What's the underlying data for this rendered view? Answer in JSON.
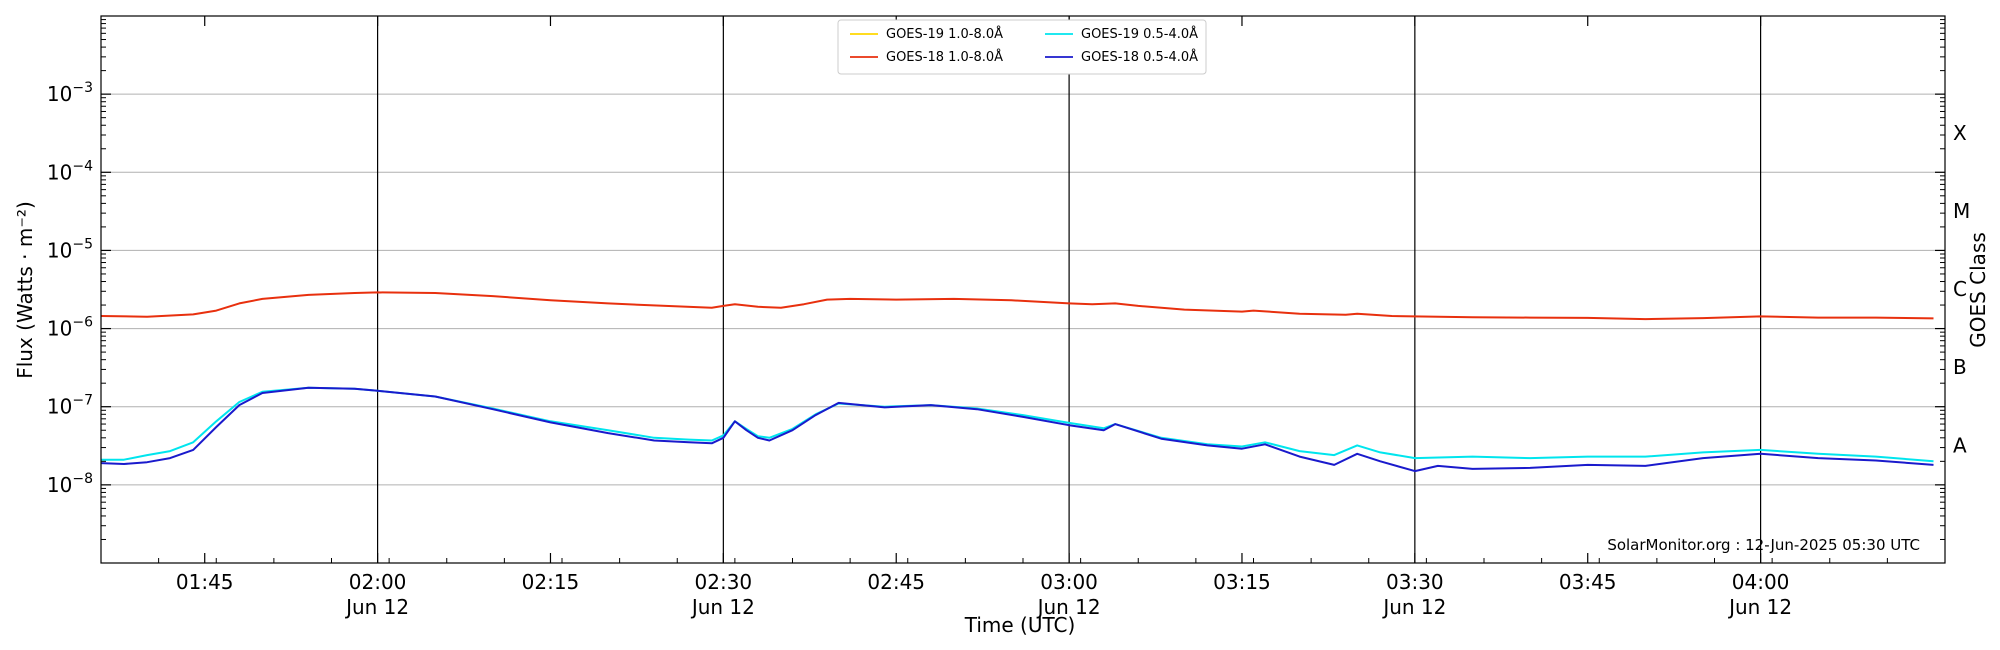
{
  "chart_data": {
    "type": "line",
    "ylabel": "Flux (Watts · m⁻²)",
    "xlabel": "Time (UTC)",
    "right_axis_label": "GOES Class",
    "credit": "SolarMonitor.org : 12-Jun-2025 05:30 UTC",
    "y_scale": "log",
    "ylim": [
      1e-09,
      0.01
    ],
    "xlim": [
      "01:36",
      "04:16"
    ],
    "y_ticks": [
      {
        "value": 1e-08,
        "base": "10",
        "exp": "−8"
      },
      {
        "value": 1e-07,
        "base": "10",
        "exp": "−7"
      },
      {
        "value": 1e-06,
        "base": "10",
        "exp": "−6"
      },
      {
        "value": 1e-05,
        "base": "10",
        "exp": "−5"
      },
      {
        "value": 0.0001,
        "base": "10",
        "exp": "−4"
      },
      {
        "value": 0.001,
        "base": "10",
        "exp": "−3"
      }
    ],
    "x_ticks": [
      {
        "time": "01:45",
        "label": "01:45",
        "date": ""
      },
      {
        "time": "02:00",
        "label": "02:00",
        "date": "Jun 12"
      },
      {
        "time": "02:15",
        "label": "02:15",
        "date": ""
      },
      {
        "time": "02:30",
        "label": "02:30",
        "date": "Jun 12"
      },
      {
        "time": "02:45",
        "label": "02:45",
        "date": ""
      },
      {
        "time": "03:00",
        "label": "03:00",
        "date": "Jun 12"
      },
      {
        "time": "03:15",
        "label": "03:15",
        "date": ""
      },
      {
        "time": "03:30",
        "label": "03:30",
        "date": "Jun 12"
      },
      {
        "time": "03:45",
        "label": "03:45",
        "date": ""
      },
      {
        "time": "04:00",
        "label": "04:00",
        "date": "Jun 12"
      }
    ],
    "vertical_lines": [
      "02:00",
      "02:30",
      "03:00",
      "03:30",
      "04:00"
    ],
    "goes_classes": [
      {
        "label": "A",
        "value": 3.2e-08
      },
      {
        "label": "B",
        "value": 3.2e-07
      },
      {
        "label": "C",
        "value": 3.2e-06
      },
      {
        "label": "M",
        "value": 3.2e-05
      },
      {
        "label": "X",
        "value": 0.00032
      }
    ],
    "grid": true,
    "legend_placement": "top-center",
    "series": [
      {
        "name": "GOES-19 1.0-8.0Å",
        "color": "#ffd700",
        "points": []
      },
      {
        "name": "GOES-18 1.0-8.0Å",
        "color": "#e8300e",
        "points": [
          [
            "01:36",
            1.45e-06
          ],
          [
            "01:40",
            1.42e-06
          ],
          [
            "01:44",
            1.52e-06
          ],
          [
            "01:46",
            1.7e-06
          ],
          [
            "01:48",
            2.1e-06
          ],
          [
            "01:50",
            2.4e-06
          ],
          [
            "01:54",
            2.7e-06
          ],
          [
            "01:58",
            2.85e-06
          ],
          [
            "02:00",
            2.9e-06
          ],
          [
            "02:05",
            2.85e-06
          ],
          [
            "02:10",
            2.6e-06
          ],
          [
            "02:15",
            2.3e-06
          ],
          [
            "02:20",
            2.1e-06
          ],
          [
            "02:25",
            1.95e-06
          ],
          [
            "02:29",
            1.85e-06
          ],
          [
            "02:30",
            1.95e-06
          ],
          [
            "02:31",
            2.05e-06
          ],
          [
            "02:33",
            1.9e-06
          ],
          [
            "02:35",
            1.85e-06
          ],
          [
            "02:37",
            2.05e-06
          ],
          [
            "02:39",
            2.35e-06
          ],
          [
            "02:41",
            2.4e-06
          ],
          [
            "02:45",
            2.35e-06
          ],
          [
            "02:50",
            2.4e-06
          ],
          [
            "02:55",
            2.3e-06
          ],
          [
            "03:00",
            2.1e-06
          ],
          [
            "03:02",
            2.05e-06
          ],
          [
            "03:04",
            2.1e-06
          ],
          [
            "03:06",
            1.95e-06
          ],
          [
            "03:10",
            1.75e-06
          ],
          [
            "03:15",
            1.65e-06
          ],
          [
            "03:16",
            1.7e-06
          ],
          [
            "03:20",
            1.55e-06
          ],
          [
            "03:24",
            1.5e-06
          ],
          [
            "03:25",
            1.55e-06
          ],
          [
            "03:28",
            1.45e-06
          ],
          [
            "03:35",
            1.4e-06
          ],
          [
            "03:40",
            1.38e-06
          ],
          [
            "03:45",
            1.37e-06
          ],
          [
            "03:50",
            1.32e-06
          ],
          [
            "03:55",
            1.36e-06
          ],
          [
            "04:00",
            1.43e-06
          ],
          [
            "04:05",
            1.38e-06
          ],
          [
            "04:10",
            1.38e-06
          ],
          [
            "04:15",
            1.35e-06
          ]
        ]
      },
      {
        "name": "GOES-19 0.5-4.0Å",
        "color": "#00e5ee",
        "points": [
          [
            "01:36",
            2.1e-08
          ],
          [
            "01:38",
            2.1e-08
          ],
          [
            "01:40",
            2.4e-08
          ],
          [
            "01:42",
            2.7e-08
          ],
          [
            "01:44",
            3.5e-08
          ],
          [
            "01:46",
            6.5e-08
          ],
          [
            "01:48",
            1.15e-07
          ],
          [
            "01:50",
            1.55e-07
          ],
          [
            "01:54",
            1.75e-07
          ],
          [
            "01:58",
            1.7e-07
          ],
          [
            "02:00",
            1.6e-07
          ],
          [
            "02:05",
            1.35e-07
          ],
          [
            "02:10",
            9.5e-08
          ],
          [
            "02:15",
            6.5e-08
          ],
          [
            "02:20",
            5e-08
          ],
          [
            "02:24",
            4e-08
          ],
          [
            "02:27",
            3.8e-08
          ],
          [
            "02:29",
            3.7e-08
          ],
          [
            "02:30",
            4.3e-08
          ],
          [
            "02:31",
            6.5e-08
          ],
          [
            "02:32",
            5.2e-08
          ],
          [
            "02:33",
            4.2e-08
          ],
          [
            "02:34",
            4e-08
          ],
          [
            "02:36",
            5.2e-08
          ],
          [
            "02:38",
            8e-08
          ],
          [
            "02:40",
            1.1e-07
          ],
          [
            "02:44",
            1e-07
          ],
          [
            "02:48",
            1.05e-07
          ],
          [
            "02:52",
            9.5e-08
          ],
          [
            "02:56",
            7.8e-08
          ],
          [
            "03:00",
            6.2e-08
          ],
          [
            "03:03",
            5.3e-08
          ],
          [
            "03:04",
            6e-08
          ],
          [
            "03:08",
            4e-08
          ],
          [
            "03:12",
            3.3e-08
          ],
          [
            "03:15",
            3.1e-08
          ],
          [
            "03:17",
            3.5e-08
          ],
          [
            "03:20",
            2.7e-08
          ],
          [
            "03:23",
            2.4e-08
          ],
          [
            "03:25",
            3.2e-08
          ],
          [
            "03:27",
            2.6e-08
          ],
          [
            "03:30",
            2.2e-08
          ],
          [
            "03:35",
            2.3e-08
          ],
          [
            "03:40",
            2.2e-08
          ],
          [
            "03:45",
            2.3e-08
          ],
          [
            "03:50",
            2.3e-08
          ],
          [
            "03:55",
            2.6e-08
          ],
          [
            "04:00",
            2.8e-08
          ],
          [
            "04:05",
            2.5e-08
          ],
          [
            "04:10",
            2.3e-08
          ],
          [
            "04:15",
            2e-08
          ]
        ]
      },
      {
        "name": "GOES-18 0.5-4.0Å",
        "color": "#1a1acc",
        "points": [
          [
            "01:36",
            1.9e-08
          ],
          [
            "01:38",
            1.85e-08
          ],
          [
            "01:40",
            1.95e-08
          ],
          [
            "01:42",
            2.2e-08
          ],
          [
            "01:44",
            2.8e-08
          ],
          [
            "01:46",
            5.5e-08
          ],
          [
            "01:48",
            1.05e-07
          ],
          [
            "01:50",
            1.5e-07
          ],
          [
            "01:54",
            1.75e-07
          ],
          [
            "01:58",
            1.7e-07
          ],
          [
            "02:00",
            1.6e-07
          ],
          [
            "02:05",
            1.35e-07
          ],
          [
            "02:10",
            9.3e-08
          ],
          [
            "02:15",
            6.3e-08
          ],
          [
            "02:20",
            4.6e-08
          ],
          [
            "02:24",
            3.7e-08
          ],
          [
            "02:27",
            3.5e-08
          ],
          [
            "02:29",
            3.4e-08
          ],
          [
            "02:30",
            4e-08
          ],
          [
            "02:31",
            6.5e-08
          ],
          [
            "02:32",
            5e-08
          ],
          [
            "02:33",
            4e-08
          ],
          [
            "02:34",
            3.7e-08
          ],
          [
            "02:36",
            5e-08
          ],
          [
            "02:38",
            7.8e-08
          ],
          [
            "02:40",
            1.12e-07
          ],
          [
            "02:44",
            9.8e-08
          ],
          [
            "02:48",
            1.05e-07
          ],
          [
            "02:52",
            9.3e-08
          ],
          [
            "02:56",
            7.4e-08
          ],
          [
            "03:00",
            5.8e-08
          ],
          [
            "03:03",
            5e-08
          ],
          [
            "03:04",
            6e-08
          ],
          [
            "03:08",
            3.9e-08
          ],
          [
            "03:12",
            3.2e-08
          ],
          [
            "03:15",
            2.9e-08
          ],
          [
            "03:17",
            3.3e-08
          ],
          [
            "03:20",
            2.3e-08
          ],
          [
            "03:23",
            1.8e-08
          ],
          [
            "03:25",
            2.5e-08
          ],
          [
            "03:27",
            2e-08
          ],
          [
            "03:30",
            1.5e-08
          ],
          [
            "03:32",
            1.75e-08
          ],
          [
            "03:35",
            1.6e-08
          ],
          [
            "03:40",
            1.65e-08
          ],
          [
            "03:45",
            1.8e-08
          ],
          [
            "03:50",
            1.75e-08
          ],
          [
            "03:55",
            2.2e-08
          ],
          [
            "04:00",
            2.5e-08
          ],
          [
            "04:05",
            2.2e-08
          ],
          [
            "04:10",
            2.05e-08
          ],
          [
            "04:15",
            1.8e-08
          ]
        ]
      }
    ]
  }
}
